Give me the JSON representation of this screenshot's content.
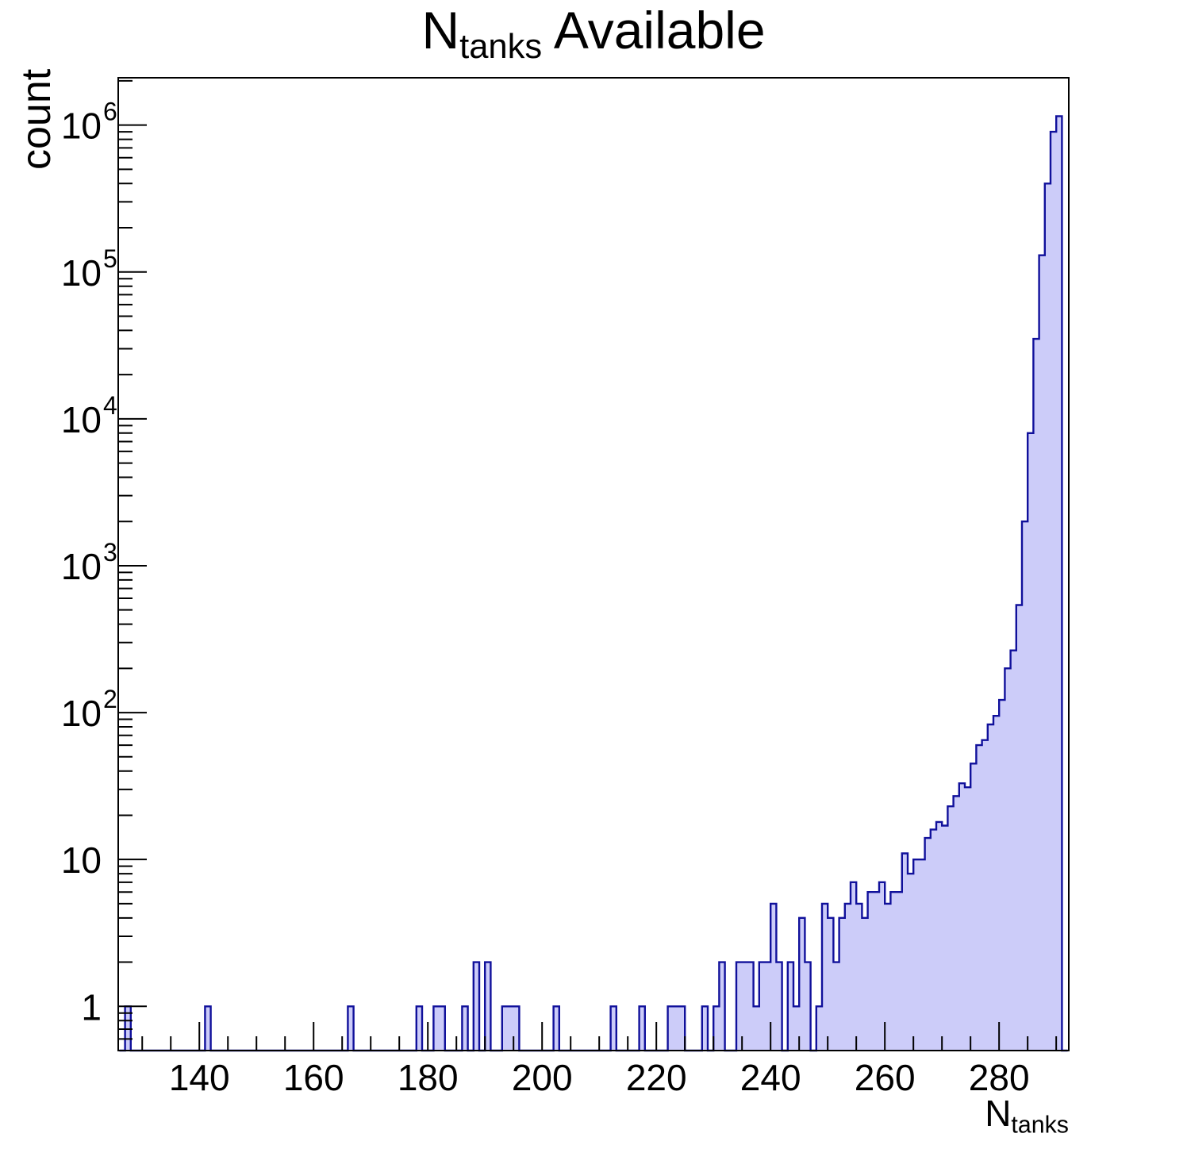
{
  "chart_data": {
    "type": "bar",
    "style": "log-y step histogram (ROOT style)",
    "title": "N_{tanks} Available",
    "title_parts": {
      "main": "N",
      "sub": "tanks",
      "rest": " Available"
    },
    "ylabel": "count",
    "xlabel_parts": {
      "main": "N",
      "sub": "tanks"
    },
    "x_axis": {
      "min": 125.8,
      "max": 292.2,
      "major_ticks": [
        140,
        160,
        180,
        200,
        220,
        240,
        260,
        280
      ],
      "tick_labels": [
        "140",
        "160",
        "180",
        "200",
        "220",
        "240",
        "260",
        "280"
      ],
      "minor_tick_step": 5,
      "major_tick_step": 20
    },
    "y_axis": {
      "scale": "log",
      "min": 0.5,
      "max": 2100000,
      "decades": [
        1,
        10,
        100,
        1000,
        10000,
        100000,
        1000000
      ],
      "tick_labels": [
        {
          "text": "1"
        },
        {
          "text": "10"
        },
        {
          "base": "10",
          "exp": "2"
        },
        {
          "base": "10",
          "exp": "3"
        },
        {
          "base": "10",
          "exp": "4"
        },
        {
          "base": "10",
          "exp": "5"
        },
        {
          "base": "10",
          "exp": "6"
        }
      ]
    },
    "bin_width": 1,
    "bins_format": "[bin_left_edge_x, count]",
    "bins": [
      [
        127,
        1
      ],
      [
        141,
        1
      ],
      [
        166,
        1
      ],
      [
        178,
        1
      ],
      [
        181,
        1
      ],
      [
        182,
        1
      ],
      [
        186,
        1
      ],
      [
        188,
        2
      ],
      [
        190,
        2
      ],
      [
        193,
        1
      ],
      [
        194,
        1
      ],
      [
        195,
        1
      ],
      [
        202,
        1
      ],
      [
        212,
        1
      ],
      [
        217,
        1
      ],
      [
        222,
        1
      ],
      [
        223,
        1
      ],
      [
        224,
        1
      ],
      [
        228,
        1
      ],
      [
        230,
        1
      ],
      [
        231,
        2
      ],
      [
        234,
        2
      ],
      [
        235,
        2
      ],
      [
        236,
        2
      ],
      [
        237,
        1
      ],
      [
        238,
        2
      ],
      [
        239,
        2
      ],
      [
        240,
        5
      ],
      [
        241,
        2
      ],
      [
        243,
        2
      ],
      [
        244,
        1
      ],
      [
        245,
        4
      ],
      [
        246,
        2
      ],
      [
        248,
        1
      ],
      [
        249,
        5
      ],
      [
        250,
        4
      ],
      [
        251,
        2
      ],
      [
        252,
        4
      ],
      [
        253,
        5
      ],
      [
        254,
        7
      ],
      [
        255,
        5
      ],
      [
        256,
        4
      ],
      [
        257,
        6
      ],
      [
        258,
        6
      ],
      [
        259,
        7
      ],
      [
        260,
        5
      ],
      [
        261,
        6
      ],
      [
        262,
        6
      ],
      [
        263,
        11
      ],
      [
        264,
        8
      ],
      [
        265,
        10
      ],
      [
        266,
        10
      ],
      [
        267,
        14
      ],
      [
        268,
        16
      ],
      [
        269,
        18
      ],
      [
        270,
        17
      ],
      [
        271,
        23
      ],
      [
        272,
        27
      ],
      [
        273,
        33
      ],
      [
        274,
        31
      ],
      [
        275,
        45
      ],
      [
        276,
        60
      ],
      [
        277,
        65
      ],
      [
        278,
        83
      ],
      [
        279,
        95
      ],
      [
        280,
        122
      ],
      [
        281,
        200
      ],
      [
        282,
        265
      ],
      [
        283,
        540
      ],
      [
        284,
        2000
      ],
      [
        285,
        8000
      ],
      [
        286,
        35000
      ],
      [
        287,
        130000
      ],
      [
        288,
        400000
      ],
      [
        289,
        900000
      ],
      [
        290,
        1150000
      ]
    ],
    "legend": "none",
    "grid": "off",
    "colors": {
      "fill": "#ccccf9",
      "line": "#10109b",
      "frame": "#000000",
      "background": "#ffffff"
    }
  }
}
